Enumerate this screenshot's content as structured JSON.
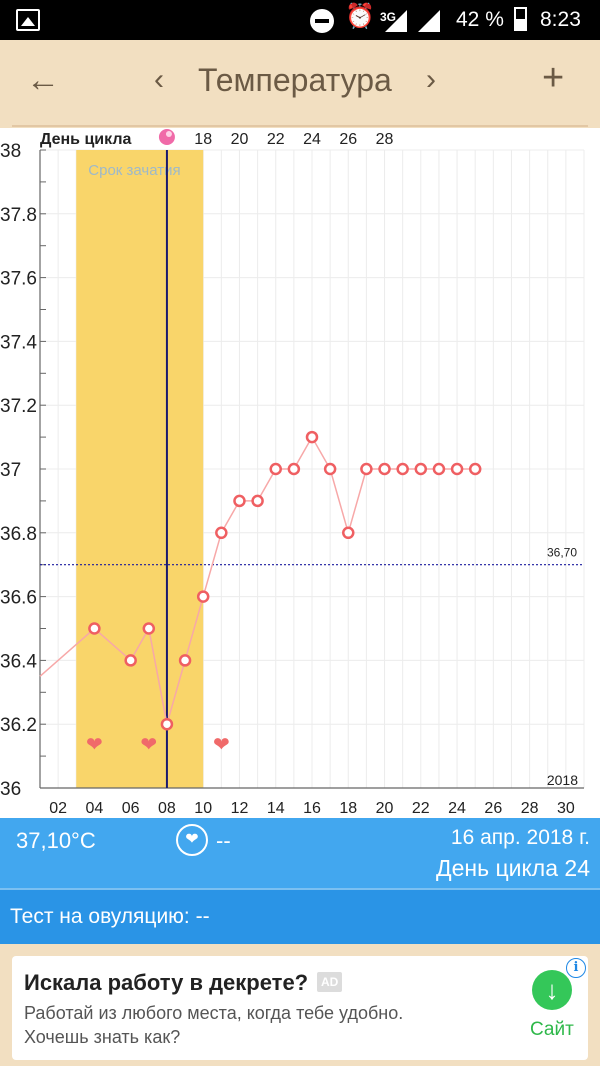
{
  "status_bar": {
    "network": "3G",
    "battery_percent": "42 %",
    "time": "8:23"
  },
  "toolbar": {
    "title": "Температура",
    "back_icon": "arrow-left-icon",
    "prev_icon": "chevron-left-icon",
    "next_icon": "chevron-right-icon",
    "add_icon": "plus-icon"
  },
  "colors": {
    "background": "#f2dfc1",
    "fertile_window": "#f9d56a",
    "temperature_line": "#f7a8a8",
    "temperature_marker": "#ef5f62",
    "ovulation_line": "#1a1a6e",
    "coverline": "#1a1a9e",
    "info_blue": "#42a7ef",
    "ovulation_blue": "#2a94e6"
  },
  "chart_data": {
    "type": "line",
    "title": "",
    "cycle_label": "День цикла",
    "cycle_day_ticks": [
      "18",
      "20",
      "22",
      "24",
      "26",
      "28"
    ],
    "cycle_day_ticks_x": [
      10,
      12,
      14,
      16,
      18,
      20
    ],
    "x_ticks": [
      "02",
      "04",
      "06",
      "08",
      "10",
      "12",
      "14",
      "16",
      "18",
      "20",
      "22",
      "24",
      "26",
      "28",
      "30"
    ],
    "xlim": [
      1,
      31
    ],
    "ylim": [
      36,
      38
    ],
    "y_ticks": [
      "36",
      "36.2",
      "36.4",
      "36.6",
      "36.8",
      "37",
      "37.2",
      "37.4",
      "37.6",
      "37.8",
      "38"
    ],
    "year_label": "2018",
    "fertile_window": {
      "label": "Срок зачатия",
      "x_start": 3,
      "x_end": 10
    },
    "ovulation_day_x": 8,
    "coverline": {
      "value": 36.7,
      "label": "36,70"
    },
    "hearts_x": [
      4,
      7,
      11
    ],
    "series": [
      {
        "x": [
          1,
          4,
          6,
          7,
          8,
          9,
          10,
          11,
          12,
          13,
          14,
          15,
          16,
          17,
          18,
          19,
          20,
          21,
          22,
          23,
          24,
          25
        ],
        "values": [
          36.35,
          36.5,
          36.4,
          36.5,
          36.2,
          36.4,
          36.6,
          36.8,
          36.9,
          36.9,
          37.0,
          37.0,
          37.1,
          37.0,
          36.8,
          37.0,
          37.0,
          37.0,
          37.0,
          37.0,
          37.0,
          37.0
        ],
        "markers_from_index": 1
      }
    ]
  },
  "info": {
    "temperature": "37,10°C",
    "heart_value": "--",
    "date": "16 апр. 2018 г.",
    "cycle_day": "День цикла 24"
  },
  "ovulation_test": {
    "label": "Тест на овуляцию: --"
  },
  "ad": {
    "title": "Искала работу в декрете?",
    "badge": "AD",
    "line1": "Работай из любого места, когда тебе удобно.",
    "line2": "Хочешь знать как?",
    "site_label": "Сайт"
  }
}
